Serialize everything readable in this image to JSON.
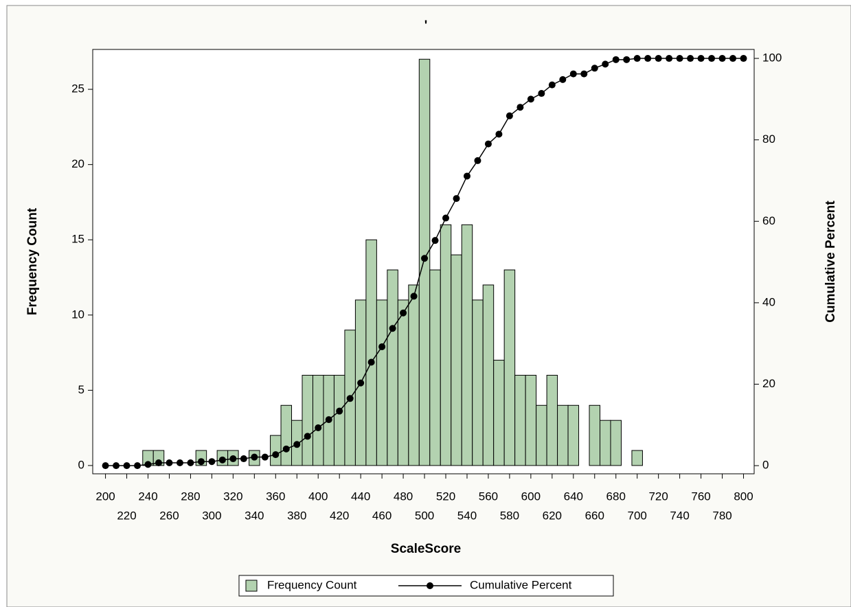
{
  "chart_data": {
    "type": "histogram",
    "title": "'",
    "x_label": "ScaleScore",
    "y_label": "Frequency Count",
    "y2_label": "Cumulative Percent",
    "bins": [
      195,
      205,
      215,
      225,
      235,
      245,
      255,
      265,
      275,
      285,
      295,
      305,
      315,
      325,
      335,
      345,
      355,
      365,
      375,
      385,
      395,
      405,
      415,
      425,
      435,
      445,
      455,
      465,
      475,
      485,
      495,
      505,
      515,
      525,
      535,
      545,
      555,
      565,
      575,
      585,
      595,
      605,
      615,
      625,
      635,
      645,
      655,
      665,
      675,
      685,
      695,
      705,
      715,
      725,
      735,
      745,
      755,
      765,
      775,
      785,
      795,
      805
    ],
    "x": [
      200,
      210,
      220,
      230,
      240,
      250,
      260,
      270,
      280,
      290,
      300,
      310,
      320,
      330,
      340,
      350,
      360,
      370,
      380,
      390,
      400,
      410,
      420,
      430,
      440,
      450,
      460,
      470,
      480,
      490,
      500,
      510,
      520,
      530,
      540,
      550,
      560,
      570,
      580,
      590,
      600,
      610,
      620,
      630,
      640,
      650,
      660,
      670,
      680,
      690,
      700,
      710,
      720,
      730,
      740,
      750,
      760,
      770,
      780,
      790,
      800
    ],
    "series": [
      {
        "name": "Frequency Count",
        "color": "#b3d2b0",
        "values": [
          0,
          0,
          0,
          0,
          1,
          1,
          0,
          0,
          0,
          1,
          0,
          1,
          1,
          0,
          1,
          0,
          2,
          4,
          3,
          6,
          6,
          6,
          6,
          9,
          11,
          15,
          11,
          13,
          11,
          12,
          27,
          13,
          16,
          14,
          16,
          11,
          12,
          7,
          13,
          6,
          6,
          4,
          6,
          4,
          4,
          0,
          4,
          3,
          3,
          0,
          1,
          0,
          0,
          0,
          0,
          0,
          0,
          0,
          0,
          0,
          0
        ]
      },
      {
        "name": "Cumulative Percent",
        "color": "#000000",
        "axis": "y2",
        "values": [
          0,
          0,
          0,
          0,
          0.3,
          0.7,
          0.7,
          0.7,
          0.7,
          1.0,
          1.0,
          1.4,
          1.7,
          1.7,
          2.1,
          2.1,
          2.7,
          4.1,
          5.2,
          7.2,
          9.3,
          11.3,
          13.4,
          16.5,
          20.3,
          25.4,
          29.2,
          33.7,
          37.5,
          41.6,
          50.9,
          55.3,
          60.8,
          65.6,
          71.1,
          74.9,
          79.0,
          81.4,
          85.9,
          88.0,
          90.0,
          91.4,
          93.5,
          94.8,
          96.2,
          96.2,
          97.6,
          98.6,
          99.7,
          99.7,
          100,
          100,
          100,
          100,
          100,
          100,
          100,
          100,
          100,
          100,
          100
        ]
      }
    ],
    "xlim": [
      188,
      810
    ],
    "xticks": [
      200,
      220,
      240,
      260,
      280,
      300,
      320,
      340,
      360,
      380,
      400,
      420,
      440,
      460,
      480,
      500,
      520,
      540,
      560,
      580,
      600,
      620,
      640,
      660,
      680,
      700,
      720,
      740,
      760,
      780,
      800
    ],
    "ylim": [
      -0.55,
      27.65
    ],
    "yticks": [
      0,
      5,
      10,
      15,
      20,
      25
    ],
    "y2lim": [
      -2.0,
      102.2
    ],
    "y2ticks": [
      0,
      20,
      40,
      60,
      80,
      100
    ],
    "legend": "bottom"
  }
}
